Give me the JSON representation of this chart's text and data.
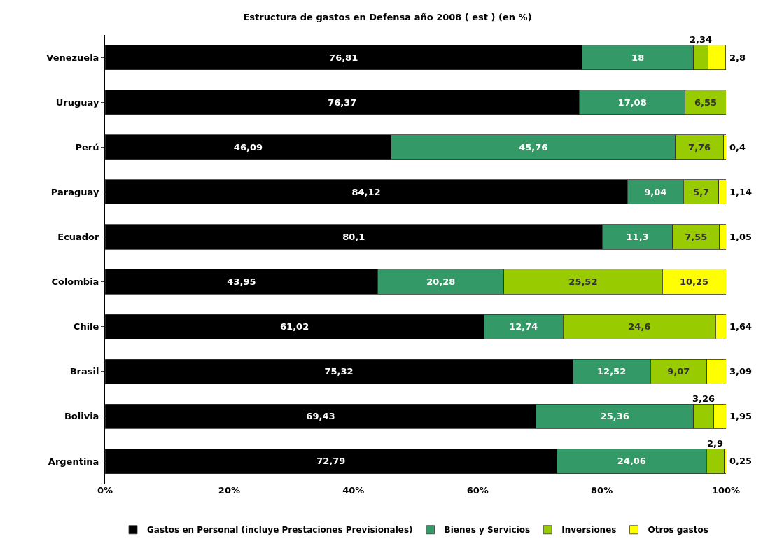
{
  "chart_data": {
    "type": "bar",
    "orientation": "horizontal",
    "stacked": true,
    "title": "Estructura de gastos en Defensa año 2008 ( est ) (en %)",
    "categories": [
      "Venezuela",
      "Uruguay",
      "Perú",
      "Paraguay",
      "Ecuador",
      "Colombia",
      "Chile",
      "Brasil",
      "Bolivia",
      "Argentina"
    ],
    "series": [
      {
        "name": "Gastos en Personal (incluye Prestaciones Previsionales)",
        "color": "#000000",
        "values": [
          76.81,
          76.37,
          46.09,
          84.12,
          80.1,
          43.95,
          61.02,
          75.32,
          69.43,
          72.79
        ],
        "value_labels": [
          "76,81",
          "76,37",
          "46,09",
          "84,12",
          "80,1",
          "43,95",
          "61,02",
          "75,32",
          "69,43",
          "72,79"
        ]
      },
      {
        "name": "Bienes y Servicios",
        "color": "#339966",
        "values": [
          18,
          17.08,
          45.76,
          9.04,
          11.3,
          20.28,
          12.74,
          12.52,
          25.36,
          24.06
        ],
        "value_labels": [
          "18",
          "17,08",
          "45,76",
          "9,04",
          "11,3",
          "20,28",
          "12,74",
          "12,52",
          "25,36",
          "24,06"
        ]
      },
      {
        "name": "Inversiones",
        "color": "#99cc00",
        "values": [
          2.34,
          6.55,
          7.76,
          5.7,
          7.55,
          25.52,
          24.6,
          9.07,
          3.26,
          2.9
        ],
        "value_labels": [
          "2,34",
          "6,55",
          "7,76",
          "5,7",
          "7,55",
          "25,52",
          "24,6",
          "9,07",
          "3,26",
          "2,9"
        ]
      },
      {
        "name": "Otros gastos",
        "color": "#ffff00",
        "values": [
          2.8,
          null,
          0.4,
          1.14,
          1.05,
          10.25,
          1.64,
          3.09,
          1.95,
          0.25
        ],
        "value_labels": [
          "2,8",
          null,
          "0,4",
          "1,14",
          "1,05",
          "10,25",
          "1,64",
          "3,09",
          "1,95",
          "0,25"
        ]
      }
    ],
    "xlim": [
      0,
      100
    ],
    "xticks": [
      {
        "value": 0,
        "label": "0%"
      },
      {
        "value": 20,
        "label": "20%"
      },
      {
        "value": 40,
        "label": "40%"
      },
      {
        "value": 60,
        "label": "60%"
      },
      {
        "value": 80,
        "label": "80%"
      },
      {
        "value": 100,
        "label": "100%"
      }
    ],
    "legend": "bottom"
  }
}
